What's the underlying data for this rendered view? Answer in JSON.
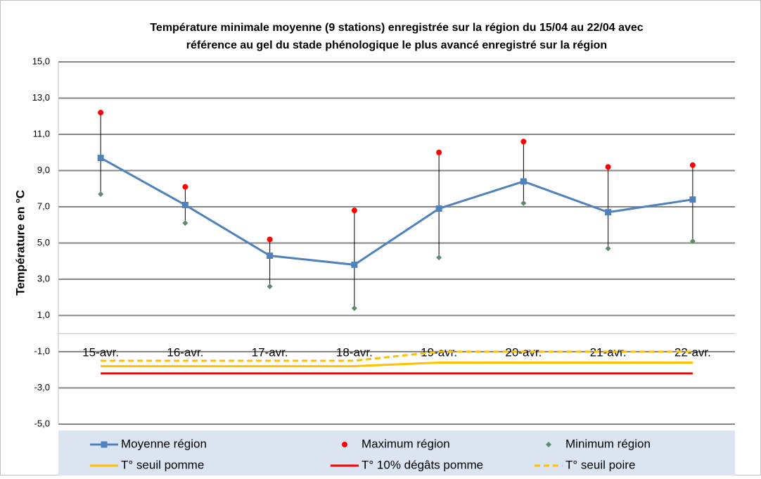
{
  "chart_data": {
    "type": "line",
    "title": [
      "Température minimale moyenne (9 stations) enregistrée sur la région du 15/04 au 22/04 avec",
      "référence au gel du stade phénologique le plus avancé enregistré sur la région"
    ],
    "y_label": "Température en °C",
    "categories": [
      "15-avr.",
      "16-avr.",
      "17-avr.",
      "18-avr.",
      "19-avr.",
      "20-avr.",
      "21-avr.",
      "22-avr."
    ],
    "ylim": [
      -5,
      15
    ],
    "yticks": [
      {
        "value": -5,
        "label": "-5,0"
      },
      {
        "value": -3,
        "label": "-3,0"
      },
      {
        "value": -1,
        "label": "-1,0"
      },
      {
        "value": 1,
        "label": "1,0"
      },
      {
        "value": 3,
        "label": "3,0"
      },
      {
        "value": 5,
        "label": "5,0"
      },
      {
        "value": 7,
        "label": "7,0"
      },
      {
        "value": 9,
        "label": "9,0"
      },
      {
        "value": 11,
        "label": "11,0"
      },
      {
        "value": 13,
        "label": "13,0"
      },
      {
        "value": 15,
        "label": "15,0"
      }
    ],
    "grid": true,
    "high_low_lines": true,
    "series": [
      {
        "name": "Moyenne région",
        "color": "#4f81bd",
        "line": "solid",
        "marker": "square",
        "values": [
          9.7,
          7.1,
          4.3,
          3.8,
          6.9,
          8.4,
          6.7,
          7.4
        ]
      },
      {
        "name": "Maximum région",
        "color": "#ff0000",
        "line": "none",
        "marker": "circle",
        "values": [
          12.2,
          8.1,
          5.2,
          6.8,
          10.0,
          10.6,
          9.2,
          9.3
        ]
      },
      {
        "name": "Minimum région",
        "color": "#5f8a6b",
        "line": "none",
        "marker": "diamond",
        "values": [
          7.7,
          6.1,
          2.6,
          1.4,
          4.2,
          7.2,
          4.7,
          5.1
        ]
      },
      {
        "name": "T° seuil pomme",
        "color": "#ffc000",
        "line": "solid",
        "marker": "none",
        "values": [
          -1.8,
          -1.8,
          -1.8,
          -1.8,
          -1.6,
          -1.6,
          -1.6,
          -1.6
        ]
      },
      {
        "name": "T° 10% dégâts pomme",
        "color": "#ff0000",
        "line": "solid",
        "marker": "none",
        "values": [
          -2.2,
          -2.2,
          -2.2,
          -2.2,
          -2.2,
          -2.2,
          -2.2,
          -2.2
        ]
      },
      {
        "name": "T° seuil poire",
        "color": "#ffc000",
        "line": "dashed",
        "marker": "none",
        "values": [
          -1.5,
          -1.5,
          -1.5,
          -1.5,
          -1.0,
          -1.0,
          -1.0,
          -1.0
        ]
      }
    ]
  }
}
